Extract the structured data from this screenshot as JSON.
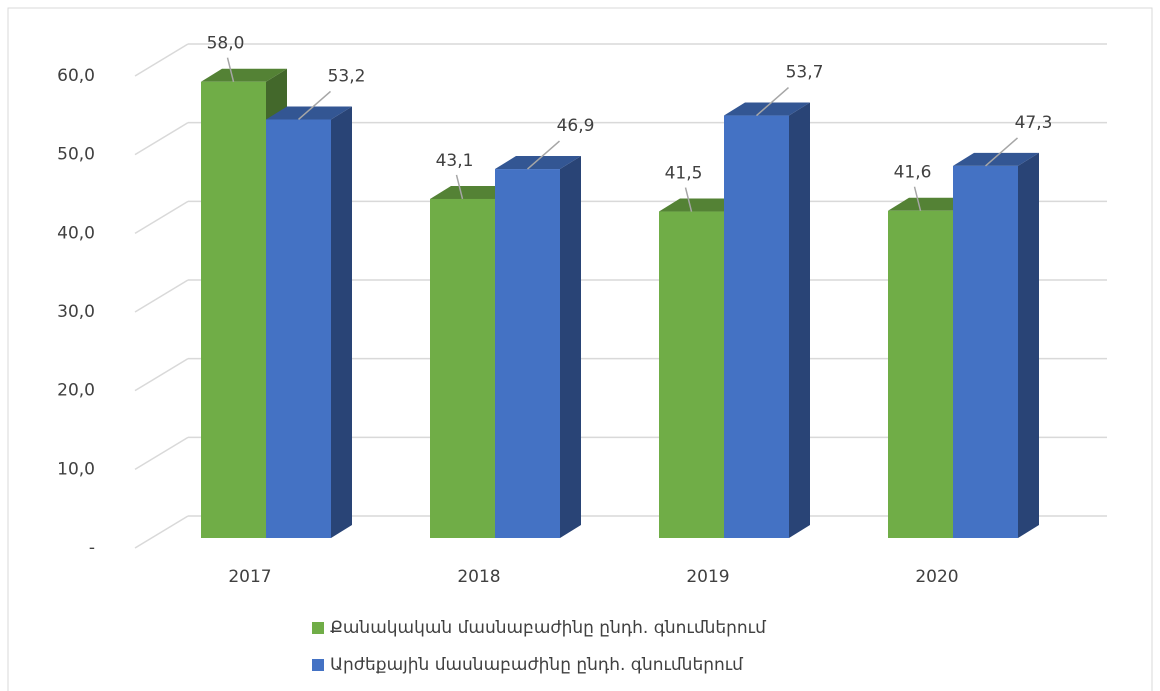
{
  "chart_data": {
    "type": "bar3d",
    "categories": [
      "2017",
      "2018",
      "2019",
      "2020"
    ],
    "series": [
      {
        "name": "Քանակական մասնաբաժինը ընդհ. գնումներում",
        "color": "#70ad47",
        "values": [
          58.0,
          43.1,
          41.5,
          41.6
        ],
        "value_labels": [
          "58,0",
          "43,1",
          "41,5",
          "41,6"
        ]
      },
      {
        "name": "Արժեքային մասնաբաժինը ընդհ. գնումներում",
        "color": "#4472c4",
        "values": [
          53.2,
          46.9,
          53.7,
          47.3
        ],
        "value_labels": [
          "53,2",
          "46,9",
          "53,7",
          "47,3"
        ]
      }
    ],
    "ylim": [
      0,
      60
    ],
    "yticks": [
      {
        "value": 0,
        "label": "-"
      },
      {
        "value": 10,
        "label": "10,0"
      },
      {
        "value": 20,
        "label": "20,0"
      },
      {
        "value": 30,
        "label": "30,0"
      },
      {
        "value": 40,
        "label": "40,0"
      },
      {
        "value": 50,
        "label": "50,0"
      },
      {
        "value": 60,
        "label": "60,0"
      }
    ],
    "grid": true,
    "legend": "bottom"
  }
}
